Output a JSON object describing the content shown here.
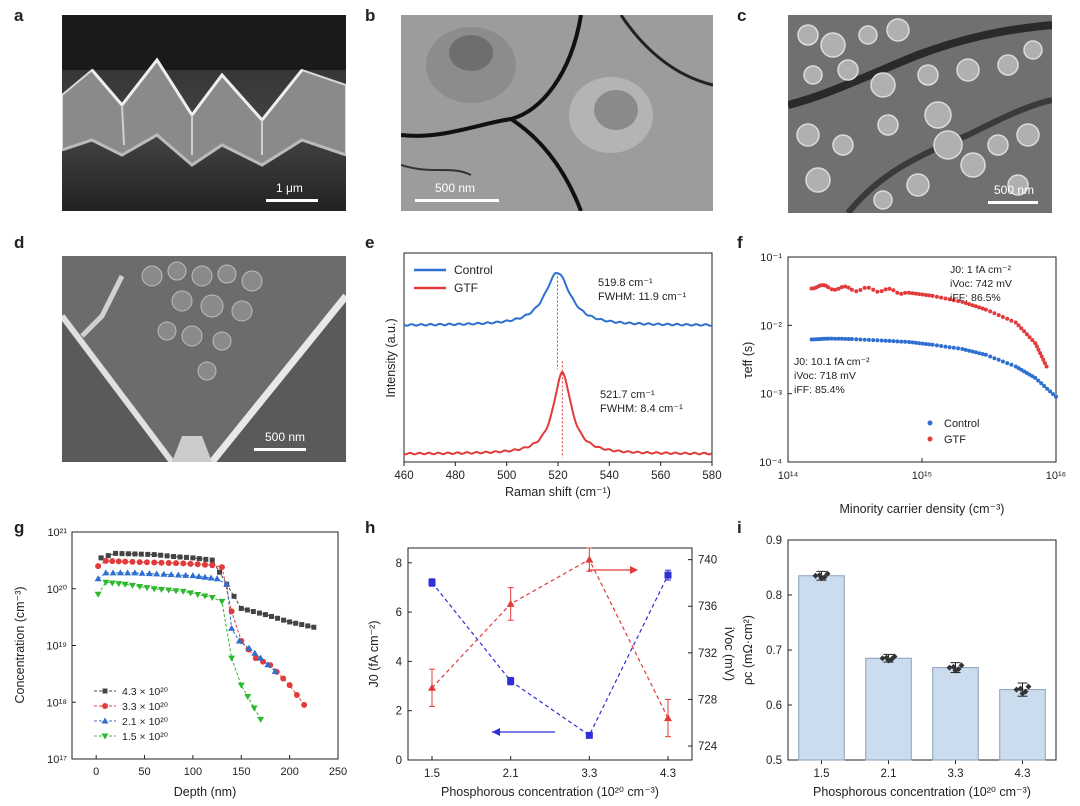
{
  "panels": {
    "a": {
      "label": "a",
      "scale": "1 μm"
    },
    "b": {
      "label": "b",
      "scale": "500 nm"
    },
    "c": {
      "label": "c",
      "scale": "500 nm"
    },
    "d": {
      "label": "d",
      "scale": "500 nm"
    },
    "e": {
      "label": "e"
    },
    "f": {
      "label": "f"
    },
    "g": {
      "label": "g"
    },
    "h": {
      "label": "h"
    },
    "i": {
      "label": "i"
    }
  },
  "colors": {
    "control": "#2f6fd0",
    "gtf": "#e23b3b",
    "bar": "#cbdcef",
    "black": "#222222"
  },
  "chart_data": [
    {
      "panel": "e",
      "type": "line",
      "xlabel": "Raman shift (cm⁻¹)",
      "ylabel": "Intensity (a.u.)",
      "xlim": [
        460,
        580
      ],
      "xticks": [
        "460",
        "480",
        "500",
        "520",
        "540",
        "560",
        "580"
      ],
      "series": [
        {
          "name": "Control",
          "peak": 519.8,
          "fwhm": 11.9,
          "baseline": 0.68,
          "height": 0.28
        },
        {
          "name": "GTF",
          "peak": 521.7,
          "fwhm": 8.4,
          "baseline": 0.0,
          "height": 0.43
        }
      ],
      "legend": [
        "Control",
        "GTF"
      ],
      "annotations": {
        "control_peak": "519.8 cm⁻¹",
        "control_fwhm": "FWHM: 11.9 cm⁻¹",
        "gtf_peak": "521.7 cm⁻¹",
        "gtf_fwhm": "FWHM: 8.4 cm⁻¹"
      }
    },
    {
      "panel": "f",
      "type": "scatter",
      "xlabel": "Minority carrier density (cm⁻³)",
      "ylabel": "τeff (s)",
      "xscale": "log",
      "yscale": "log",
      "xlim": [
        100000000000000.0,
        1e+16
      ],
      "ylim": [
        0.0001,
        0.1
      ],
      "xticks": [
        "10¹⁴",
        "10¹⁵",
        "10¹⁶"
      ],
      "yticks": [
        "10⁻⁴",
        "10⁻³",
        "10⁻²",
        "10⁻¹"
      ],
      "series": [
        {
          "name": "Control",
          "x": [
            150000000000000.0,
            200000000000000.0,
            300000000000000.0,
            500000000000000.0,
            800000000000000.0,
            1200000000000000.0,
            2000000000000000.0,
            3000000000000000.0,
            5000000000000000.0,
            7000000000000000.0,
            1e+16
          ],
          "y": [
            0.0062,
            0.0064,
            0.0063,
            0.006,
            0.0057,
            0.0052,
            0.0045,
            0.0037,
            0.0025,
            0.0017,
            0.0009
          ]
        },
        {
          "name": "GTF",
          "x": [
            150000000000000.0,
            200000000000000.0,
            300000000000000.0,
            500000000000000.0,
            800000000000000.0,
            1200000000000000.0,
            2000000000000000.0,
            3000000000000000.0,
            5000000000000000.0,
            7000000000000000.0,
            8500000000000000.0
          ],
          "y": [
            0.037,
            0.036,
            0.034,
            0.033,
            0.03,
            0.027,
            0.022,
            0.017,
            0.011,
            0.0055,
            0.0025
          ]
        }
      ],
      "legend": [
        "Control",
        "GTF"
      ],
      "annotations": {
        "gtf_j0": "J0: 1 fA cm⁻²",
        "gtf_ivoc": "iVoc: 742 mV",
        "gtf_iff": "iFF: 86.5%",
        "ctl_j0": "J0: 10.1 fA cm⁻²",
        "ctl_ivoc": "iVoc: 718 mV",
        "ctl_iff": "iFF: 85.4%"
      }
    },
    {
      "panel": "g",
      "type": "line",
      "xlabel": "Depth (nm)",
      "ylabel": "Concentration (cm⁻³)",
      "xlim": [
        -25,
        250
      ],
      "ylim_log10": [
        17,
        21
      ],
      "yscale": "log",
      "xticks": [
        "0",
        "50",
        "100",
        "150",
        "200",
        "250"
      ],
      "yticks": [
        "10¹⁷",
        "10¹⁸",
        "10¹⁹",
        "10²⁰",
        "10²¹"
      ],
      "series": [
        {
          "name": "4.3 × 10²⁰",
          "x": [
            5,
            20,
            40,
            60,
            80,
            100,
            120,
            150,
            175,
            200,
            225
          ],
          "y": [
            3.5e+20,
            4.2e+20,
            4.1e+20,
            4e+20,
            3.7e+20,
            3.5e+20,
            3.2e+20,
            4.5e+19,
            3.5e+19,
            2.6e+19,
            2.1e+19
          ]
        },
        {
          "name": "3.3 × 10²⁰",
          "x": [
            2,
            10,
            30,
            60,
            90,
            120,
            130,
            140,
            150,
            165,
            180,
            200,
            215
          ],
          "y": [
            2.5e+20,
            3.1e+20,
            3e+20,
            2.9e+20,
            2.8e+20,
            2.6e+20,
            2.4e+20,
            4e+19,
            1.2e+19,
            6e+18,
            4.5e+18,
            2e+18,
            9e+17
          ]
        },
        {
          "name": "2.1 × 10²⁰",
          "x": [
            2,
            10,
            40,
            70,
            100,
            125,
            135,
            140,
            148,
            158,
            170,
            185
          ],
          "y": [
            1.5e+20,
            1.9e+20,
            1.9e+20,
            1.8e+20,
            1.7e+20,
            1.5e+20,
            1.2e+20,
            2e+19,
            1.2e+19,
            9e+18,
            6e+18,
            3.5e+18
          ]
        },
        {
          "name": "1.5 × 10²⁰",
          "x": [
            2,
            10,
            30,
            60,
            90,
            120,
            130,
            140,
            150,
            170
          ],
          "y": [
            8e+19,
            1.3e+20,
            1.2e+20,
            1e+20,
            9e+19,
            7e+19,
            6e+19,
            6e+18,
            2e+18,
            5e+17
          ]
        }
      ],
      "legend": [
        "4.3 × 10²⁰",
        "3.3 × 10²⁰",
        "2.1 × 10²⁰",
        "1.5 × 10²⁰"
      ]
    },
    {
      "panel": "h",
      "type": "line",
      "xlabel": "Phosphorous concentration (10²⁰ cm⁻³)",
      "ylabel_left": "J0 (fA cm⁻²)",
      "ylabel_right": "iVoc (mV)",
      "categories": [
        "1.5",
        "2.1",
        "3.3",
        "4.3"
      ],
      "ylim_left": [
        0,
        8.6
      ],
      "yticks_left": [
        "0",
        "2",
        "4",
        "6",
        "8"
      ],
      "ylim_right": [
        722.8,
        741
      ],
      "yticks_right": [
        "724",
        "728",
        "732",
        "736",
        "740"
      ],
      "series": [
        {
          "name": "J0",
          "axis": "left",
          "values": [
            7.2,
            3.2,
            1.0,
            7.5
          ],
          "errors": [
            0.15,
            0.15,
            0.08,
            0.2
          ]
        },
        {
          "name": "iVoc",
          "axis": "right",
          "values": [
            729,
            736.2,
            740,
            726.4
          ],
          "errors": [
            1.6,
            1.4,
            1.0,
            1.6
          ]
        }
      ]
    },
    {
      "panel": "i",
      "type": "bar",
      "xlabel": "Phosphorous concentration (10²⁰ cm⁻³)",
      "ylabel": "ρc (mΩ·cm²)",
      "categories": [
        "1.5",
        "2.1",
        "3.3",
        "4.3"
      ],
      "values": [
        0.835,
        0.685,
        0.668,
        0.628
      ],
      "errors": [
        0.008,
        0.007,
        0.009,
        0.012
      ],
      "ylim": [
        0.5,
        0.9
      ],
      "yticks": [
        "0.5",
        "0.6",
        "0.7",
        "0.8",
        "0.9"
      ]
    }
  ]
}
